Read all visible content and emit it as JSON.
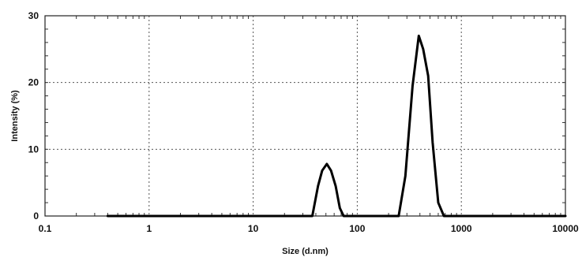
{
  "chart_data": {
    "type": "line",
    "title": "",
    "xlabel": "Size (d.nm)",
    "ylabel": "Intensity (%)",
    "xscale": "log",
    "xlim": [
      0.1,
      10000
    ],
    "ylim": [
      0,
      30
    ],
    "x_ticks": [
      0.1,
      1,
      10,
      100,
      1000,
      10000
    ],
    "x_tick_labels": [
      "0.1",
      "1",
      "10",
      "100",
      "1000",
      "10000"
    ],
    "y_ticks": [
      0,
      10,
      20,
      30
    ],
    "y_tick_labels": [
      "0",
      "10",
      "20",
      "30"
    ],
    "grid": true,
    "legend": "none",
    "series": [
      {
        "color": "#000000",
        "x": [
          0.4,
          37,
          42,
          46,
          51,
          56,
          62,
          68,
          74,
          80,
          250,
          290,
          340,
          390,
          430,
          480,
          530,
          600,
          680,
          10000
        ],
        "y": [
          0,
          0,
          4.5,
          6.8,
          7.8,
          6.8,
          4.5,
          1.2,
          0,
          0,
          0,
          6,
          19.5,
          27,
          25,
          21,
          11,
          2,
          0,
          0
        ]
      }
    ]
  }
}
